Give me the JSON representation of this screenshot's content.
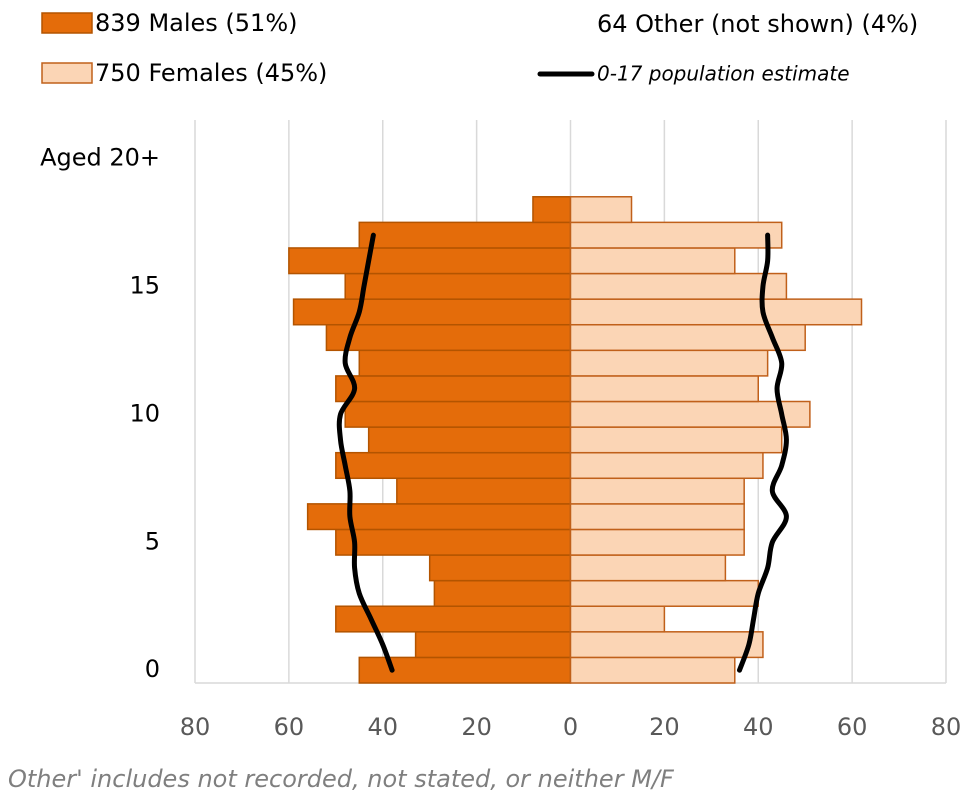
{
  "chart_data": {
    "type": "population-pyramid",
    "categories": [
      "0",
      null,
      null,
      null,
      null,
      "5",
      null,
      null,
      null,
      null,
      "10",
      null,
      null,
      null,
      null,
      "15",
      null,
      null,
      null,
      null,
      "Aged 20+",
      null
    ],
    "series": [
      {
        "name": "839 Males (51%)",
        "color": "#e46c0a",
        "side": "left",
        "values": [
          45,
          33,
          50,
          29,
          30,
          50,
          56,
          37,
          50,
          43,
          48,
          50,
          45,
          52,
          59,
          48,
          60,
          45,
          8,
          null,
          null,
          null
        ]
      },
      {
        "name": "750 Females (45%)",
        "color": "#fbd5b5",
        "side": "right",
        "values": [
          35,
          41,
          20,
          40,
          33,
          37,
          37,
          37,
          41,
          45,
          51,
          40,
          42,
          50,
          62,
          46,
          35,
          45,
          13,
          null,
          null,
          null
        ]
      }
    ],
    "population_line": {
      "name": "0-17 population estimate",
      "color": "#000000",
      "left": [
        38,
        40,
        42.5,
        45,
        46,
        46,
        47,
        47,
        48,
        49,
        49,
        46,
        48,
        47,
        45,
        44,
        43,
        42,
        null,
        null,
        null,
        null
      ],
      "right": [
        36,
        38,
        39,
        40,
        42,
        43,
        46,
        43,
        45,
        46,
        45,
        44,
        45,
        43,
        41,
        41,
        42,
        42,
        null,
        null,
        null,
        null
      ]
    },
    "other_note": "64 Other (not shown) (4%)",
    "footnote": "Other' includes not recorded, not stated, or neither M/F",
    "xlim": [
      -80,
      80
    ],
    "xticks": [
      {
        "value": -80,
        "label": "80"
      },
      {
        "value": -60,
        "label": "60"
      },
      {
        "value": -40,
        "label": "40"
      },
      {
        "value": -20,
        "label": "20"
      },
      0,
      20,
      40,
      60,
      80
    ],
    "grid": true
  }
}
